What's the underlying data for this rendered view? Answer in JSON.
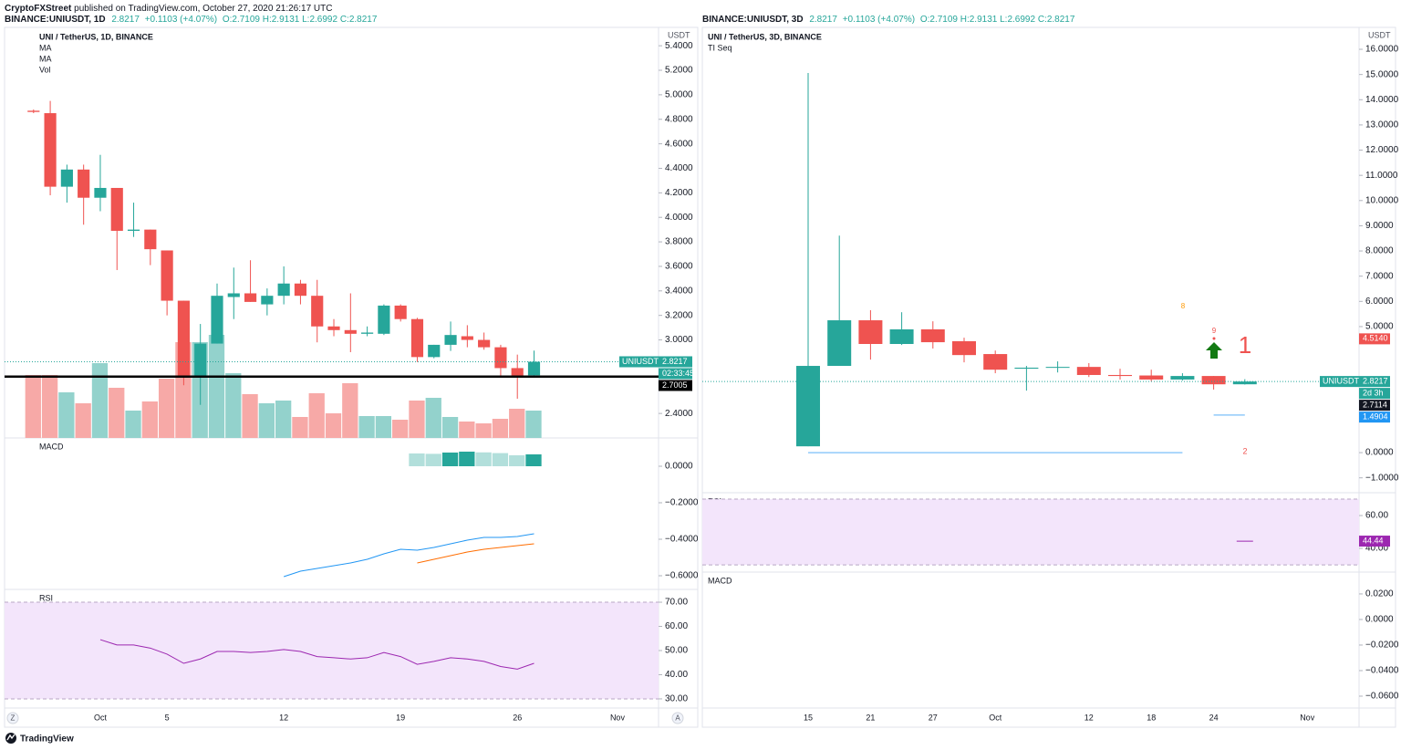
{
  "header": {
    "author": "CryptoFXStreet",
    "published": "published on TradingView.com, October 27, 2020 21:26:17 UTC"
  },
  "footer": {
    "brand": "TradingView"
  },
  "chart_data": [
    {
      "type": "candlestick",
      "header": {
        "symbol": "BINANCE:UNIUSDT, 1D",
        "last": "2.8217",
        "change": "+0.1103 (+4.07%)",
        "ohlc": "O:2.7109 H:2.9131 L:2.6992 C:2.8217"
      },
      "title": "UNI / TetherUS, 1D, BINANCE",
      "legend": [
        "MA",
        "MA",
        "Vol"
      ],
      "axis_unit": "USDT",
      "corner_buttons": [
        "Z",
        "A"
      ],
      "categories": [
        null,
        null,
        null,
        null,
        "Oct",
        null,
        null,
        null,
        "5",
        null,
        null,
        null,
        null,
        null,
        null,
        "12",
        null,
        null,
        null,
        null,
        null,
        null,
        "19",
        null,
        null,
        null,
        null,
        null,
        null,
        "26",
        null,
        null,
        null,
        null,
        null,
        "Nov"
      ],
      "open": [
        4.87,
        4.85,
        4.25,
        4.39,
        4.16,
        4.24,
        3.89,
        3.9,
        3.73,
        3.32,
        2.7,
        2.97,
        3.35,
        3.38,
        3.29,
        3.36,
        3.46,
        3.36,
        3.11,
        3.08,
        3.05,
        3.05,
        3.28,
        3.17,
        2.86,
        2.96,
        3.03,
        3.0,
        2.94,
        2.77,
        2.7109,
        null,
        null,
        null,
        null,
        null
      ],
      "high": [
        4.88,
        4.95,
        4.43,
        4.43,
        4.51,
        4.24,
        4.12,
        3.9,
        3.73,
        3.32,
        3.13,
        3.46,
        3.59,
        3.65,
        3.42,
        3.6,
        3.49,
        3.49,
        3.17,
        3.38,
        3.11,
        3.29,
        3.29,
        3.18,
        2.96,
        3.15,
        3.12,
        3.06,
        2.96,
        2.88,
        2.9131,
        null,
        null,
        null,
        null,
        null
      ],
      "low": [
        4.85,
        4.18,
        4.12,
        3.94,
        4.05,
        3.57,
        3.84,
        3.61,
        3.2,
        2.63,
        2.47,
        2.97,
        3.17,
        3.31,
        3.2,
        3.29,
        3.29,
        2.98,
        3.03,
        2.9,
        3.03,
        3.04,
        3.15,
        2.82,
        2.85,
        2.91,
        2.94,
        2.92,
        2.71,
        2.52,
        2.6992,
        null,
        null,
        null,
        null,
        null
      ],
      "close": [
        4.86,
        4.25,
        4.39,
        4.16,
        4.24,
        3.89,
        3.9,
        3.74,
        3.32,
        2.7,
        2.97,
        3.36,
        3.38,
        3.31,
        3.36,
        3.46,
        3.36,
        3.11,
        3.08,
        3.05,
        3.06,
        3.28,
        3.17,
        2.86,
        2.96,
        3.04,
        3.0,
        2.94,
        2.77,
        2.71,
        2.8217,
        null,
        null,
        null,
        null,
        null
      ],
      "volume": [
        69,
        69,
        50,
        38,
        82,
        55,
        30,
        40,
        65,
        105,
        105,
        113,
        71,
        48,
        38,
        41,
        23,
        49,
        27,
        60,
        24,
        24,
        20,
        41,
        44,
        23,
        18,
        16,
        21,
        32,
        30,
        null,
        null,
        null,
        null,
        null
      ],
      "volume_lim": [
        0,
        450
      ],
      "up_color": "#26a69a",
      "down_color": "#ef5350",
      "volume_up_color": "#93d2cc",
      "volume_down_color": "#f7a9a7",
      "ylim": [
        2.2,
        5.55
      ],
      "yticks": [
        {
          "value": 2.4,
          "label": "2.4000"
        },
        {
          "value": 3.0,
          "label": "3.0000"
        },
        {
          "value": 3.2,
          "label": "3.2000"
        },
        {
          "value": 3.4,
          "label": "3.4000"
        },
        {
          "value": 3.6,
          "label": "3.6000"
        },
        {
          "value": 3.8,
          "label": "3.8000"
        },
        {
          "value": 4.0,
          "label": "4.0000"
        },
        {
          "value": 4.2,
          "label": "4.2000"
        },
        {
          "value": 4.4,
          "label": "4.4000"
        },
        {
          "value": 4.6,
          "label": "4.6000"
        },
        {
          "value": 4.8,
          "label": "4.8000"
        },
        {
          "value": 5.0,
          "label": "5.0000"
        },
        {
          "value": 5.2,
          "label": "5.2000"
        },
        {
          "value": 5.4,
          "label": "5.4000"
        }
      ],
      "hline": 2.7005,
      "hline_color": "#000000",
      "price_label": {
        "name": "UNIUSDT",
        "value": 2.8217,
        "countdown": "02:33:45"
      },
      "levels": [],
      "macd": {
        "title": "MACD",
        "ylim": [
          -0.675,
          0.155
        ],
        "yticks": [
          {
            "value": 0,
            "label": "0.0000"
          },
          {
            "value": -0.2,
            "label": "−0.2000"
          },
          {
            "value": -0.4,
            "label": "−0.4000"
          },
          {
            "value": -0.6,
            "label": "−0.6000"
          }
        ],
        "macd_color": "#2196f3",
        "signal_color": "#ff6d00",
        "hist_up_color": "#26a69a",
        "hist_down_color": "#b2dfdb",
        "macd": [
          null,
          null,
          null,
          null,
          null,
          null,
          null,
          null,
          null,
          null,
          null,
          null,
          null,
          null,
          null,
          -0.605,
          -0.575,
          -0.56,
          -0.545,
          -0.53,
          -0.51,
          -0.48,
          -0.455,
          -0.46,
          -0.445,
          -0.425,
          -0.405,
          -0.39,
          -0.39,
          -0.385,
          -0.37,
          null,
          null,
          null,
          null,
          null
        ],
        "signal": [
          null,
          null,
          null,
          null,
          null,
          null,
          null,
          null,
          null,
          null,
          null,
          null,
          null,
          null,
          null,
          null,
          null,
          null,
          null,
          null,
          null,
          null,
          null,
          -0.53,
          -0.51,
          -0.49,
          -0.47,
          -0.455,
          -0.445,
          -0.435,
          -0.425,
          null,
          null,
          null,
          null,
          null
        ],
        "histogram": [
          null,
          null,
          null,
          null,
          null,
          null,
          null,
          null,
          null,
          null,
          null,
          null,
          null,
          null,
          null,
          null,
          null,
          null,
          null,
          null,
          null,
          null,
          null,
          0.07,
          0.068,
          0.075,
          0.08,
          0.076,
          0.072,
          0.06,
          0.065,
          null,
          null,
          null,
          null,
          null
        ]
      },
      "rsi": {
        "title": "RSI",
        "ylim": [
          26.2,
          75.3
        ],
        "band": [
          30,
          70
        ],
        "color": "#9c27b0",
        "yticks": [
          {
            "value": 70,
            "label": "70.00"
          },
          {
            "value": 60,
            "label": "60.00"
          },
          {
            "value": 50,
            "label": "50.00"
          },
          {
            "value": 40,
            "label": "40.00"
          },
          {
            "value": 30,
            "label": "30.00"
          }
        ],
        "values": [
          null,
          null,
          null,
          null,
          54.5,
          52.3,
          52.3,
          51,
          48.5,
          44.7,
          46.5,
          49.6,
          49.6,
          49.2,
          49.6,
          50.4,
          49.6,
          47.5,
          47,
          46.5,
          47,
          49.2,
          47.5,
          44.3,
          45.5,
          47,
          46.5,
          45.5,
          43.4,
          42.3,
          44.7,
          null,
          null,
          null,
          null,
          null
        ]
      }
    },
    {
      "type": "candlestick",
      "header": {
        "symbol": "BINANCE:UNIUSDT, 3D",
        "last": "2.8217",
        "change": "+0.1103 (+4.07%)",
        "ohlc": "O:2.7109 H:2.9131 L:2.6992 C:2.8217"
      },
      "title": "UNI / TetherUS, 3D, BINANCE",
      "legend": [
        "TI Seq"
      ],
      "axis_unit": "USDT",
      "categories": [
        "15",
        null,
        "21",
        null,
        "27",
        null,
        "Oct",
        null,
        null,
        "12",
        null,
        "18",
        null,
        "24",
        null,
        null,
        "Nov"
      ],
      "open": [
        0.25,
        3.44,
        5.25,
        4.31,
        4.89,
        4.42,
        3.91,
        3.33,
        3.37,
        3.4,
        3.08,
        3.06,
        2.9,
        3.04,
        2.7109,
        null,
        null
      ],
      "high": [
        15.06,
        8.61,
        5.65,
        5.57,
        5.21,
        4.56,
        4.05,
        3.44,
        3.62,
        3.55,
        3.33,
        3.29,
        3.15,
        3.04,
        2.9131,
        null,
        null
      ],
      "low": [
        0.25,
        3.44,
        3.69,
        4.27,
        4.13,
        3.58,
        3.15,
        2.46,
        3.18,
        3.0,
        2.9,
        2.82,
        2.86,
        2.5,
        2.6992,
        null,
        null
      ],
      "close": [
        3.44,
        5.25,
        4.31,
        4.89,
        4.38,
        3.87,
        3.29,
        3.37,
        3.4,
        3.08,
        3.04,
        2.9,
        3.04,
        2.71,
        2.8217,
        null,
        null
      ],
      "up_color": "#26a69a",
      "down_color": "#ef5350",
      "ylim": [
        -1.59,
        16.87
      ],
      "yticks": [
        {
          "value": -1,
          "label": "−1.0000"
        },
        {
          "value": 0,
          "label": "0.0000"
        },
        {
          "value": 5,
          "label": "5.0000"
        },
        {
          "value": 6,
          "label": "6.0000"
        },
        {
          "value": 7,
          "label": "7.0000"
        },
        {
          "value": 8,
          "label": "8.0000"
        },
        {
          "value": 9,
          "label": "9.0000"
        },
        {
          "value": 10,
          "label": "10.0000"
        },
        {
          "value": 11,
          "label": "11.0000"
        },
        {
          "value": 12,
          "label": "12.0000"
        },
        {
          "value": 13,
          "label": "13.0000"
        },
        {
          "value": 14,
          "label": "14.0000"
        },
        {
          "value": 15,
          "label": "15.0000"
        },
        {
          "value": 16,
          "label": "16.0000"
        }
      ],
      "price_label": {
        "name": "UNIUSDT",
        "value": 2.8217,
        "countdown": "2d 3h"
      },
      "levels": [
        {
          "value": 4.514,
          "label": "4.5140",
          "color": "#ef5350"
        },
        {
          "value": 2.7114,
          "label": "2.7114",
          "color": "#131722"
        },
        {
          "value": 1.4904,
          "label": "1.4904",
          "color": "#2196f3"
        }
      ],
      "td_lines": [
        {
          "value": 0,
          "from": 0,
          "to": 12,
          "color": "#90caf9"
        },
        {
          "value": 1.4904,
          "from": 13,
          "to": 14,
          "color": "#90caf9"
        }
      ],
      "annotations": [
        {
          "text": "8",
          "color": "#ff9800"
        },
        {
          "text": "9",
          "color": "#ef5350"
        },
        {
          "text": "1",
          "color": "#ef5350"
        },
        {
          "text": "2",
          "color": "#ef5350"
        }
      ],
      "rsi": {
        "title": "RSI",
        "ylim": [
          25.6,
          73.9
        ],
        "band": [
          30,
          70
        ],
        "color": "#9c27b0",
        "yticks": [
          {
            "value": 60,
            "label": "60.00"
          },
          {
            "value": 40,
            "label": "40.00"
          }
        ],
        "values": [
          null,
          null,
          null,
          null,
          null,
          null,
          null,
          null,
          null,
          null,
          null,
          null,
          null,
          null,
          44.44,
          null,
          null
        ]
      },
      "macd": {
        "title": "MACD",
        "ylim": [
          -0.0693,
          0.0371
        ],
        "yticks": [
          {
            "value": 0.02,
            "label": "0.0200"
          },
          {
            "value": 0,
            "label": "0.0000"
          },
          {
            "value": -0.02,
            "label": "−0.0200"
          },
          {
            "value": -0.04,
            "label": "−0.0400"
          },
          {
            "value": -0.06,
            "label": "−0.0600"
          }
        ]
      }
    }
  ]
}
